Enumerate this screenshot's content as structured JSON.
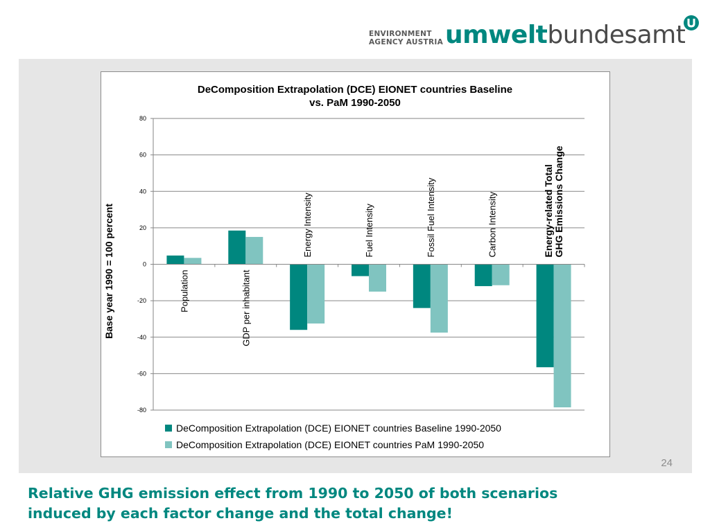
{
  "logo": {
    "line1": "ENVIRONMENT",
    "line2": "AGENCY AUSTRIA",
    "brand_bold": "umwelt",
    "brand_rest": "bundesamt",
    "badge_letter": "U",
    "color": "#00877f"
  },
  "page_number": "24",
  "caption": {
    "line1": "Relative GHG emission effect from 1990 to 2050 of both scenarios",
    "line2": "induced by each factor change and the total change!"
  },
  "chart_data": {
    "type": "bar",
    "title": [
      "DeComposition Extrapolation (DCE) EIONET countries Baseline",
      "vs. PaM 1990-2050"
    ],
    "ylabel": "Base year 1990 = 100 percent",
    "xlabel": "",
    "ylim": [
      -80,
      80
    ],
    "yticks": [
      80,
      60,
      40,
      20,
      0,
      -20,
      -40,
      -60,
      -80
    ],
    "grid": true,
    "legend_position": "bottom",
    "categories": [
      "Population",
      "GDP per inhabitant",
      "Energy Intensity",
      "Fuel Intensity",
      "Fossil Fuel Intensity",
      "Carbon Intensity",
      "Energy-related Total GHG Emissions Change"
    ],
    "category_label_lines": [
      [
        "Population"
      ],
      [
        "GDP per inhabitant"
      ],
      [
        "Energy Intensity"
      ],
      [
        "Fuel Intensity"
      ],
      [
        "Fossil Fuel Intensity"
      ],
      [
        "Carbon Intensity"
      ],
      [
        "Energy-related Total",
        "GHG Emissions Change"
      ]
    ],
    "series": [
      {
        "name": "DeComposition Extrapolation (DCE) EIONET countries Baseline 1990-2050",
        "color": "#00877f",
        "values": [
          4.8,
          18.5,
          -36,
          -6.5,
          -24,
          -12,
          -56.5
        ]
      },
      {
        "name": "DeComposition Extrapolation (DCE) EIONET countries PaM 1990-2050",
        "color": "#80c4c0",
        "values": [
          3.5,
          15,
          -32.5,
          -15,
          -37.5,
          -11.5,
          -78.5
        ]
      }
    ]
  }
}
